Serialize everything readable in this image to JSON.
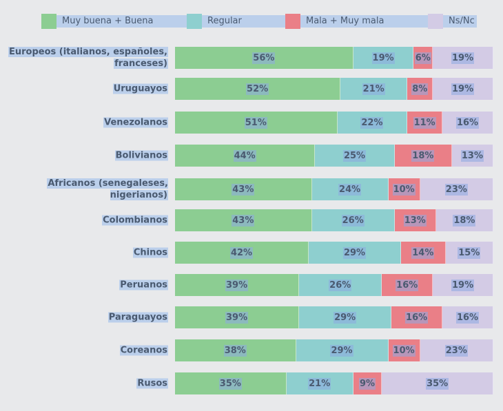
{
  "chart_data": {
    "type": "bar",
    "orientation": "horizontal",
    "stacked": true,
    "categories": [
      "Europeos (italianos, españoles, franceses)",
      "Uruguayos",
      "Venezolanos",
      "Bolivianos",
      "Africanos (senegaleses, nigerianos)",
      "Colombianos",
      "Chinos",
      "Peruanos",
      "Paraguayos",
      "Coreanos",
      "Rusos"
    ],
    "series": [
      {
        "name": "Muy buena + Buena",
        "color": "#8ccd92",
        "values": [
          56,
          52,
          51,
          44,
          43,
          43,
          42,
          39,
          39,
          38,
          35
        ]
      },
      {
        "name": "Regular",
        "color": "#8ecfcf",
        "values": [
          19,
          21,
          22,
          25,
          24,
          26,
          29,
          26,
          29,
          29,
          21
        ]
      },
      {
        "name": "Mala + Muy mala",
        "color": "#ea7f87",
        "values": [
          6,
          8,
          11,
          18,
          10,
          13,
          14,
          16,
          16,
          10,
          9
        ]
      },
      {
        "name": "Ns/Nc",
        "color": "#d3cbe5",
        "values": [
          19,
          19,
          16,
          13,
          23,
          18,
          15,
          19,
          16,
          23,
          35
        ]
      }
    ],
    "value_suffix": "%",
    "xlim": [
      0,
      100
    ],
    "legend": "top",
    "grid": false
  }
}
